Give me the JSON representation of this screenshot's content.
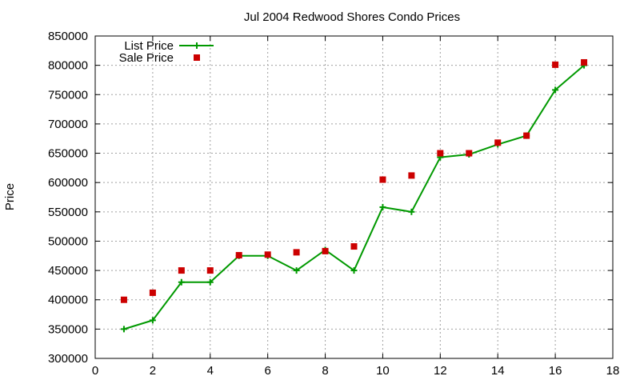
{
  "colors": {
    "list_price": "#009900",
    "sale_price": "#cc0000"
  },
  "chart_data": {
    "type": "line",
    "title": "Jul 2004 Redwood Shores Condo Prices",
    "xlabel": "",
    "ylabel": "Price",
    "xlim": [
      0,
      18
    ],
    "ylim": [
      300000,
      850000
    ],
    "x_ticks": [
      "0",
      "2",
      "4",
      "6",
      "8",
      "10",
      "12",
      "14",
      "16",
      "18"
    ],
    "y_ticks": [
      "300000",
      "350000",
      "400000",
      "450000",
      "500000",
      "550000",
      "600000",
      "650000",
      "700000",
      "750000",
      "800000",
      "850000"
    ],
    "grid": true,
    "legend_position": "top-left",
    "x": [
      1,
      2,
      3,
      4,
      5,
      6,
      7,
      8,
      9,
      10,
      11,
      12,
      13,
      14,
      15,
      16,
      17
    ],
    "series": [
      {
        "name": "List Price",
        "style": "linespoints",
        "marker": "plus",
        "color": "#009900",
        "values": [
          350000,
          365000,
          430000,
          430000,
          475000,
          475000,
          450000,
          485000,
          450000,
          558000,
          550000,
          643000,
          648000,
          665000,
          680000,
          758000,
          800000
        ]
      },
      {
        "name": "Sale Price",
        "style": "points",
        "marker": "square",
        "color": "#cc0000",
        "values": [
          400000,
          412000,
          450000,
          450000,
          476000,
          477000,
          481000,
          483000,
          491000,
          605000,
          612000,
          650000,
          650000,
          668000,
          680000,
          801000,
          805000
        ]
      }
    ]
  }
}
